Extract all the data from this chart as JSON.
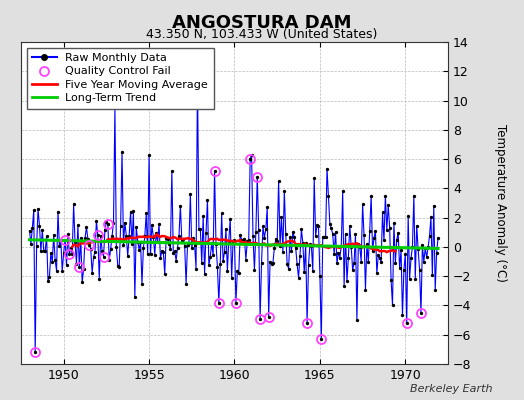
{
  "title": "ANGOSTURA DAM",
  "subtitle": "43.350 N, 103.433 W (United States)",
  "ylabel": "Temperature Anomaly (°C)",
  "watermark": "Berkeley Earth",
  "xlim": [
    1947.5,
    1972.5
  ],
  "ylim": [
    -8,
    14
  ],
  "yticks": [
    -8,
    -6,
    -4,
    -2,
    0,
    2,
    4,
    6,
    8,
    10,
    12,
    14
  ],
  "xticks": [
    1950,
    1955,
    1960,
    1965,
    1970
  ],
  "bg_color": "#e0e0e0",
  "plot_bg_color": "#ffffff",
  "raw_line_color": "#0000ff",
  "raw_dot_color": "#000000",
  "ma_color": "#ff0000",
  "trend_color": "#00cc00",
  "qc_color": "#ff44ff",
  "seed": 42,
  "title_fontsize": 13,
  "subtitle_fontsize": 9,
  "legend_fontsize": 8
}
